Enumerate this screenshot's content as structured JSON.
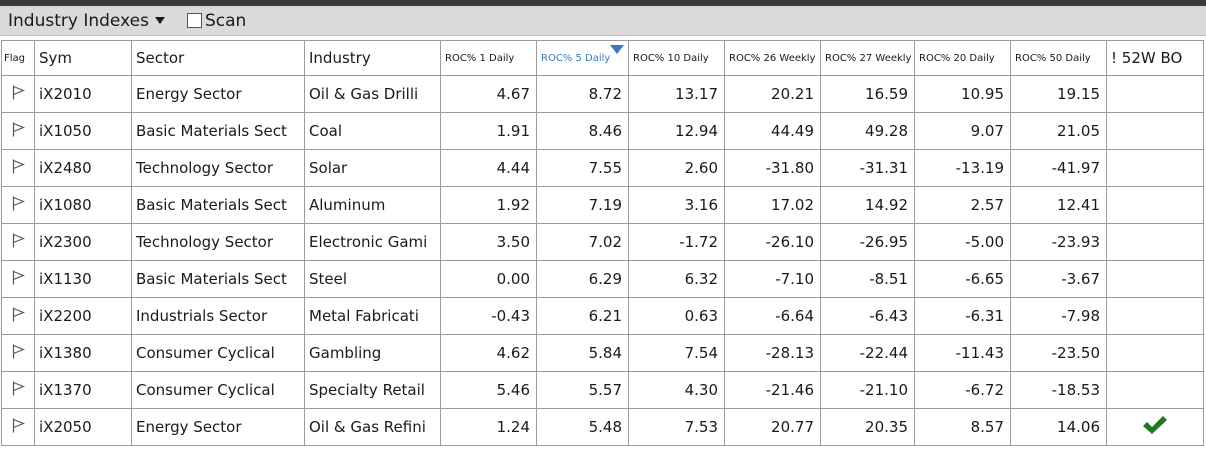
{
  "toolbar": {
    "title": "Industry Indexes",
    "scan_label": "Scan"
  },
  "columns": {
    "flag": "Flag",
    "sym": "Sym",
    "sector": "Sector",
    "industry": "Industry",
    "roc1": "ROC% 1 Daily",
    "roc5": "ROC% 5 Daily",
    "roc10": "ROC% 10 Daily",
    "roc26": "ROC% 26 Weekly",
    "roc27": "ROC% 27 Weekly",
    "roc20": "ROC% 20 Daily",
    "roc50": "ROC% 50 Daily",
    "bo": "! 52W BO"
  },
  "sort": {
    "column": "roc5",
    "direction": "descending"
  },
  "colors": {
    "sorted_header": "#3a7bbf",
    "check": "#1f7a1f"
  },
  "rows": [
    {
      "sym": "iX2010",
      "sector": "Energy Sector",
      "industry": "Oil & Gas Drilli",
      "roc1": "4.67",
      "roc5": "8.72",
      "roc10": "13.17",
      "roc26": "20.21",
      "roc27": "16.59",
      "roc20": "10.95",
      "roc50": "19.15",
      "bo": false
    },
    {
      "sym": "iX1050",
      "sector": "Basic Materials Sect",
      "industry": "Coal",
      "roc1": "1.91",
      "roc5": "8.46",
      "roc10": "12.94",
      "roc26": "44.49",
      "roc27": "49.28",
      "roc20": "9.07",
      "roc50": "21.05",
      "bo": false
    },
    {
      "sym": "iX2480",
      "sector": "Technology Sector",
      "industry": "Solar",
      "roc1": "4.44",
      "roc5": "7.55",
      "roc10": "2.60",
      "roc26": "-31.80",
      "roc27": "-31.31",
      "roc20": "-13.19",
      "roc50": "-41.97",
      "bo": false
    },
    {
      "sym": "iX1080",
      "sector": "Basic Materials Sect",
      "industry": "Aluminum",
      "roc1": "1.92",
      "roc5": "7.19",
      "roc10": "3.16",
      "roc26": "17.02",
      "roc27": "14.92",
      "roc20": "2.57",
      "roc50": "12.41",
      "bo": false
    },
    {
      "sym": "iX2300",
      "sector": "Technology Sector",
      "industry": "Electronic Gami",
      "roc1": "3.50",
      "roc5": "7.02",
      "roc10": "-1.72",
      "roc26": "-26.10",
      "roc27": "-26.95",
      "roc20": "-5.00",
      "roc50": "-23.93",
      "bo": false
    },
    {
      "sym": "iX1130",
      "sector": "Basic Materials Sect",
      "industry": "Steel",
      "roc1": "0.00",
      "roc5": "6.29",
      "roc10": "6.32",
      "roc26": "-7.10",
      "roc27": "-8.51",
      "roc20": "-6.65",
      "roc50": "-3.67",
      "bo": false
    },
    {
      "sym": "iX2200",
      "sector": "Industrials Sector",
      "industry": "Metal Fabricati",
      "roc1": "-0.43",
      "roc5": "6.21",
      "roc10": "0.63",
      "roc26": "-6.64",
      "roc27": "-6.43",
      "roc20": "-6.31",
      "roc50": "-7.98",
      "bo": false
    },
    {
      "sym": "iX1380",
      "sector": "Consumer Cyclical",
      "industry": "Gambling",
      "roc1": "4.62",
      "roc5": "5.84",
      "roc10": "7.54",
      "roc26": "-28.13",
      "roc27": "-22.44",
      "roc20": "-11.43",
      "roc50": "-23.50",
      "bo": false
    },
    {
      "sym": "iX1370",
      "sector": "Consumer Cyclical",
      "industry": "Specialty Retail",
      "roc1": "5.46",
      "roc5": "5.57",
      "roc10": "4.30",
      "roc26": "-21.46",
      "roc27": "-21.10",
      "roc20": "-6.72",
      "roc50": "-18.53",
      "bo": false
    },
    {
      "sym": "iX2050",
      "sector": "Energy Sector",
      "industry": "Oil & Gas Refini",
      "roc1": "1.24",
      "roc5": "5.48",
      "roc10": "7.53",
      "roc26": "20.77",
      "roc27": "20.35",
      "roc20": "8.57",
      "roc50": "14.06",
      "bo": true
    }
  ]
}
